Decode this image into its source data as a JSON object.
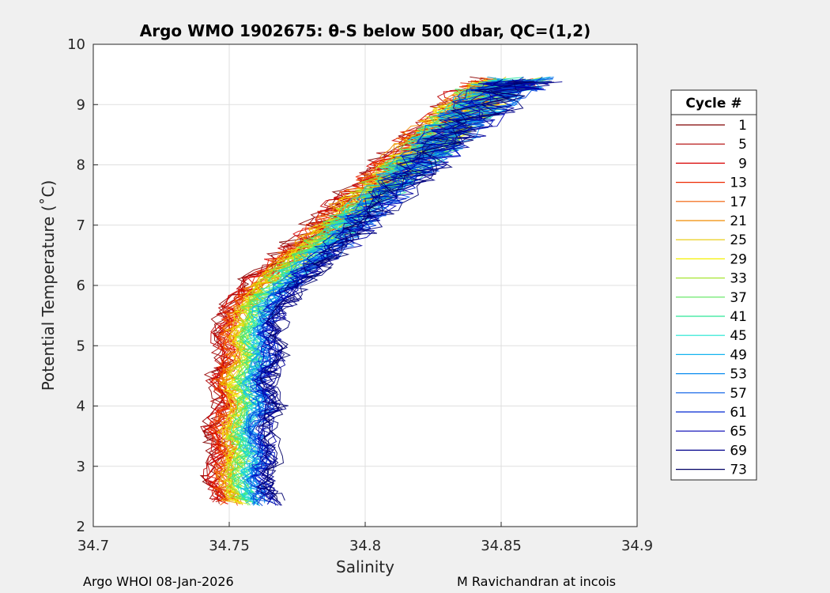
{
  "chart_data": {
    "type": "line",
    "title": "Argo WMO 1902675: θ-S below 500 dbar,  QC=(1,2)",
    "xlabel": "Salinity",
    "ylabel": "Potential Temperature (˚C)",
    "xlim": [
      34.7,
      34.9
    ],
    "ylim": [
      2,
      10
    ],
    "xticks": [
      "34.7",
      "34.75",
      "34.8",
      "34.85",
      "34.9"
    ],
    "yticks": [
      "2",
      "3",
      "4",
      "5",
      "6",
      "7",
      "8",
      "9",
      "10"
    ],
    "grid": true,
    "legend": {
      "title": "Cycle #",
      "placement": "right",
      "entries": [
        {
          "label": "1",
          "color": "#800000"
        },
        {
          "label": "5",
          "color": "#b00000"
        },
        {
          "label": "9",
          "color": "#d80000"
        },
        {
          "label": "13",
          "color": "#ee2800"
        },
        {
          "label": "17",
          "color": "#f25a00"
        },
        {
          "label": "21",
          "color": "#f08c00"
        },
        {
          "label": "25",
          "color": "#e8c800"
        },
        {
          "label": "29",
          "color": "#f4f000"
        },
        {
          "label": "33",
          "color": "#a6e632"
        },
        {
          "label": "37",
          "color": "#5ae65a"
        },
        {
          "label": "41",
          "color": "#2ee696"
        },
        {
          "label": "45",
          "color": "#1ee6d2"
        },
        {
          "label": "49",
          "color": "#14b4f0"
        },
        {
          "label": "53",
          "color": "#0a8cf0"
        },
        {
          "label": "57",
          "color": "#005ae6"
        },
        {
          "label": "61",
          "color": "#0028d2"
        },
        {
          "label": "65",
          "color": "#0000b4"
        },
        {
          "label": "69",
          "color": "#00008c"
        },
        {
          "label": "73",
          "color": "#000064"
        }
      ]
    },
    "series_template": [
      [
        34.755,
        2.4
      ],
      [
        34.752,
        2.8
      ],
      [
        34.755,
        3.2
      ],
      [
        34.752,
        3.6
      ],
      [
        34.756,
        4.0
      ],
      [
        34.753,
        4.4
      ],
      [
        34.757,
        4.8
      ],
      [
        34.755,
        5.2
      ],
      [
        34.758,
        5.6
      ],
      [
        34.765,
        6.0
      ],
      [
        34.775,
        6.4
      ],
      [
        34.786,
        6.8
      ],
      [
        34.795,
        7.2
      ],
      [
        34.805,
        7.6
      ],
      [
        34.815,
        8.0
      ],
      [
        34.825,
        8.4
      ],
      [
        34.835,
        8.8
      ],
      [
        34.845,
        9.2
      ],
      [
        34.855,
        9.4
      ]
    ],
    "series_count": 73
  },
  "footer": {
    "left": "Argo WHOI 08-Jan-2026",
    "right": "M Ravichandran at incois"
  }
}
